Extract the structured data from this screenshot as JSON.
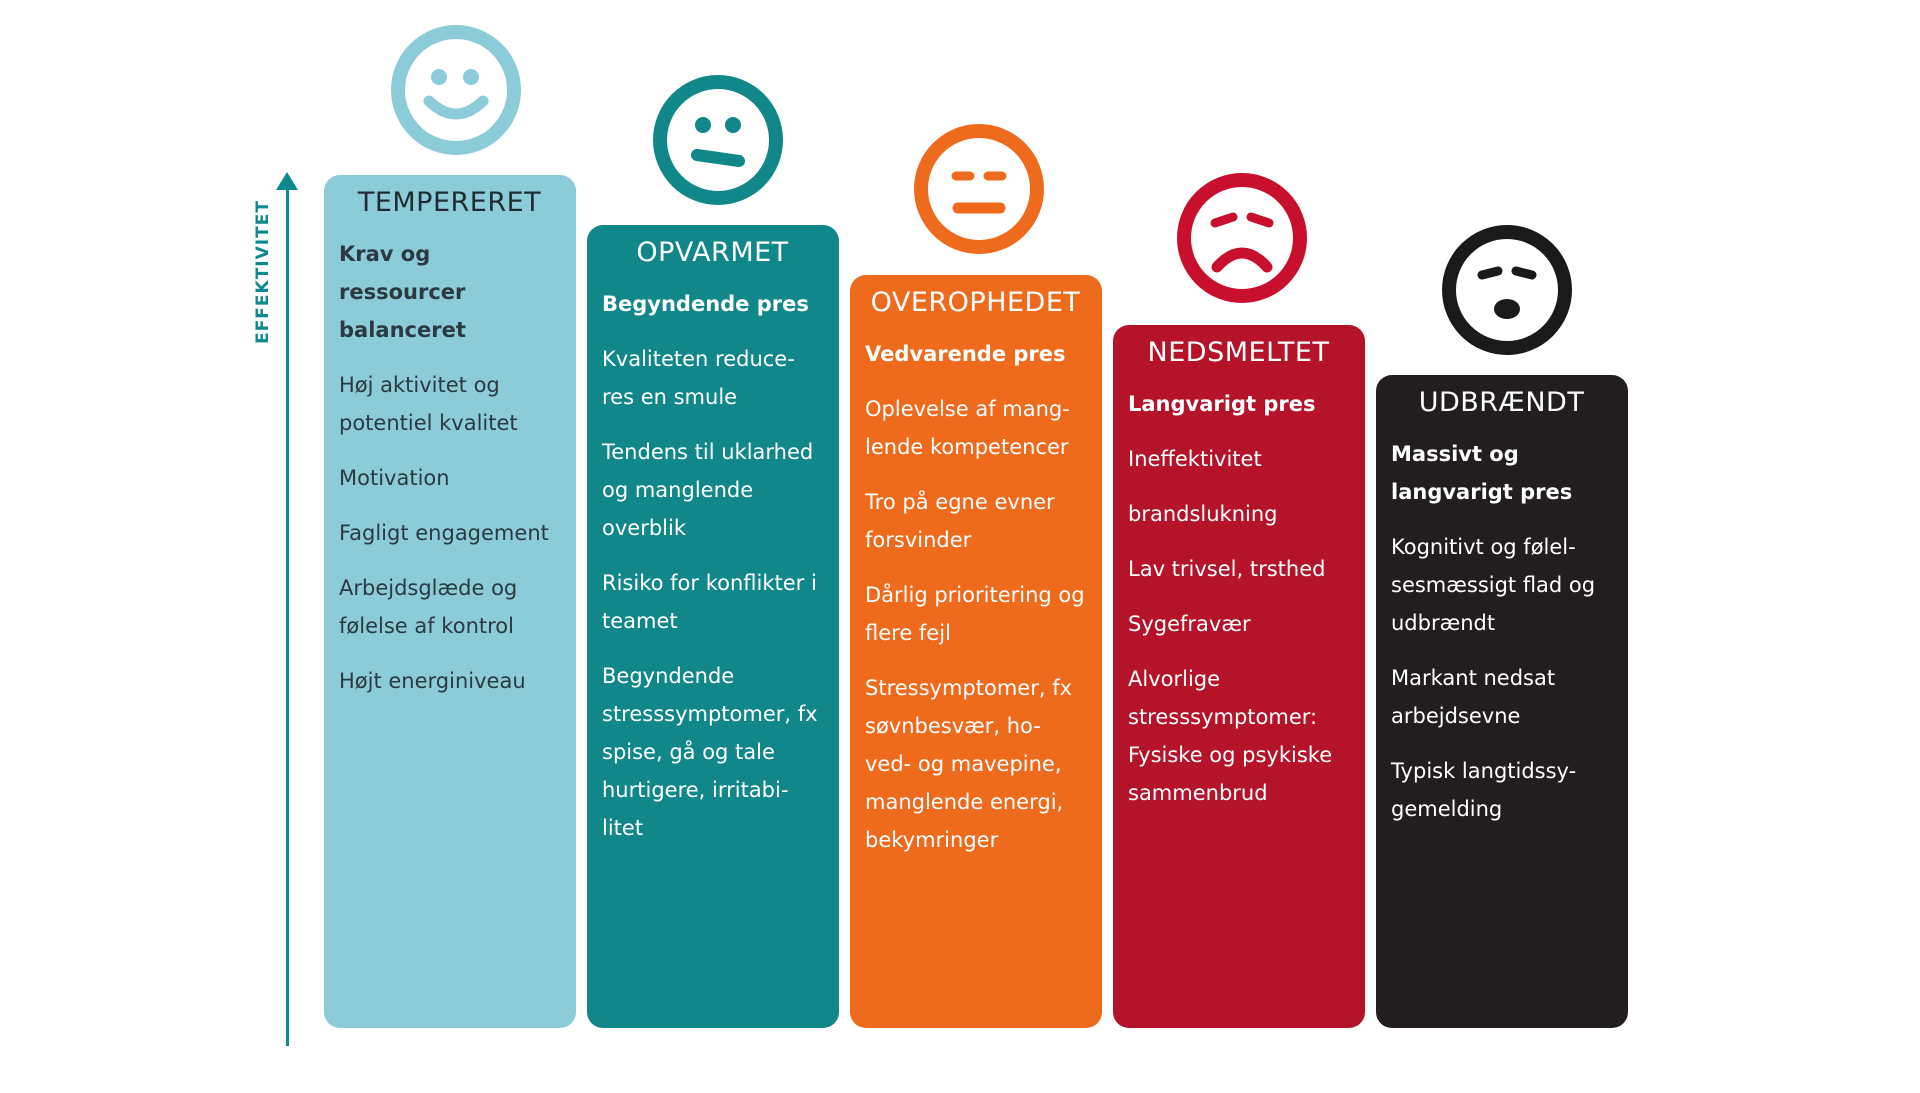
{
  "axis": {
    "label": "EFFEKTIVITET",
    "color": "#0e8a8c"
  },
  "columns": [
    {
      "title": "TEMPERERET",
      "heading": "Krav og ressourcer balanceret",
      "items": [
        "Høj aktivitet og potentiel kvalitet",
        "Motivation",
        "Fagligt engagement",
        "Arbejdsglæde og følelse af kontrol",
        "Højt energiniveau"
      ],
      "color": "#8ccbd8",
      "face_color": "#8ccbd8",
      "face_icon": "happy-face-icon"
    },
    {
      "title": "OPVARMET",
      "heading": "Begyndende pres",
      "items": [
        "Kvaliteten reduce-\nres en smule",
        "Tendens til uklarhed og manglende overblik",
        "Risiko for konflikter i teamet",
        "Begyndende stresssymptomer, fx spise, gå og tale hurtigere, irritabi-\nlitet"
      ],
      "color": "#11878a",
      "face_color": "#11878a",
      "face_icon": "uneasy-face-icon"
    },
    {
      "title": "OVEROPHEDET",
      "heading": "Vedvarende pres",
      "items": [
        "Oplevelse af mang-\nlende kompetencer",
        "Tro på egne evner forsvinder",
        "Dårlig prioritering og flere fejl",
        "Stressymptomer, fx søvnbesvær, ho-\nved- og mavepine, manglende energi, bekymringer"
      ],
      "color": "#ee6b1e",
      "face_color": "#ee6b1e",
      "face_icon": "neutral-face-icon"
    },
    {
      "title": "NEDSMELTET",
      "heading": "Langvarigt pres",
      "items": [
        "Ineffektivitet",
        "brandslukning",
        "Lav trivsel, trsthed",
        "Sygefravær",
        "Alvorlige stresssymptomer: Fysiske og psykiske sammenbrud"
      ],
      "color": "#b4132a",
      "face_color": "#c8102e",
      "face_icon": "sad-face-icon"
    },
    {
      "title": "UDBRÆNDT",
      "heading": "Massivt og langvarigt pres",
      "items": [
        "Kognitivt og følel-\nsesmæssigt flad og udbrændt",
        "Markant nedsat arbejdsevne",
        "Typisk langtidssy-\ngemelding"
      ],
      "color": "#221e1f",
      "face_color": "#1a1a1a",
      "face_icon": "exhausted-face-icon"
    }
  ]
}
